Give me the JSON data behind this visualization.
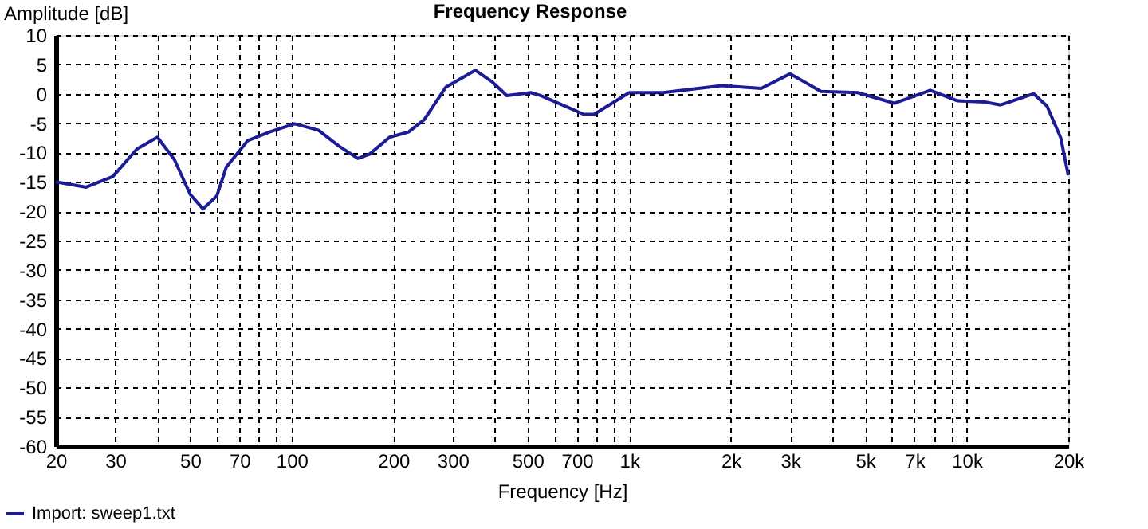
{
  "chart_data": {
    "type": "line",
    "title": "Frequency Response",
    "xlabel": "Frequency [Hz]",
    "ylabel": "Amplitude [dB]",
    "log": "x",
    "xlim": [
      20,
      20000
    ],
    "ylim": [
      -60,
      10
    ],
    "xticks": [
      20,
      30,
      {
        "value": 40,
        "label": null
      },
      50,
      {
        "value": 60,
        "label": null
      },
      70,
      {
        "value": 80,
        "label": null
      },
      {
        "value": 90,
        "label": null
      },
      100,
      200,
      300,
      {
        "value": 400,
        "label": null
      },
      500,
      {
        "value": 600,
        "label": null
      },
      700,
      {
        "value": 800,
        "label": null
      },
      {
        "value": 900,
        "label": null
      },
      {
        "value": 1000,
        "label": "1k"
      },
      {
        "value": 2000,
        "label": "2k"
      },
      {
        "value": 3000,
        "label": "3k"
      },
      {
        "value": 4000,
        "label": null
      },
      {
        "value": 5000,
        "label": "5k"
      },
      {
        "value": 6000,
        "label": null
      },
      {
        "value": 7000,
        "label": "7k"
      },
      {
        "value": 8000,
        "label": null
      },
      {
        "value": 9000,
        "label": null
      },
      {
        "value": 10000,
        "label": "10k"
      },
      {
        "value": 20000,
        "label": "20k"
      }
    ],
    "yticks": [
      10,
      5,
      0,
      -5,
      -10,
      -15,
      -20,
      -25,
      -30,
      -35,
      -40,
      -45,
      -50,
      -55,
      -60
    ],
    "grid": true,
    "legend": "bottom left",
    "marker": "none",
    "line_style": "solid",
    "series": [
      {
        "name": "Import: sweep1.txt",
        "color": "#1c1c96",
        "x": [
          20,
          24.6,
          29.5,
          34.8,
          40,
          44.9,
          50,
          54.6,
          60,
          64,
          74,
          86,
          102,
          120,
          138,
          157,
          170,
          195,
          222,
          247,
          286,
          350,
          393,
          434,
          511,
          546,
          670,
          733,
          787,
          1000,
          1260,
          1880,
          2460,
          3000,
          3700,
          4750,
          6100,
          7800,
          9400,
          11300,
          12600,
          15800,
          17300,
          19000,
          20000
        ],
        "values": [
          -15,
          -15.9,
          -14.1,
          -9.4,
          -7.4,
          -11.2,
          -17.1,
          -19.6,
          -17.4,
          -12.5,
          -8,
          -6.5,
          -5.1,
          -6.2,
          -8.9,
          -11,
          -10.3,
          -7.4,
          -6.5,
          -4.4,
          1.1,
          4,
          2,
          -0.3,
          0.2,
          -0.3,
          -2.5,
          -3.5,
          -3.5,
          0.2,
          0.2,
          1.4,
          0.9,
          3.4,
          0.4,
          0.2,
          -1.6,
          0.6,
          -1.2,
          -1.4,
          -1.9,
          0,
          -2.1,
          -7.5,
          -13.9
        ]
      }
    ]
  }
}
